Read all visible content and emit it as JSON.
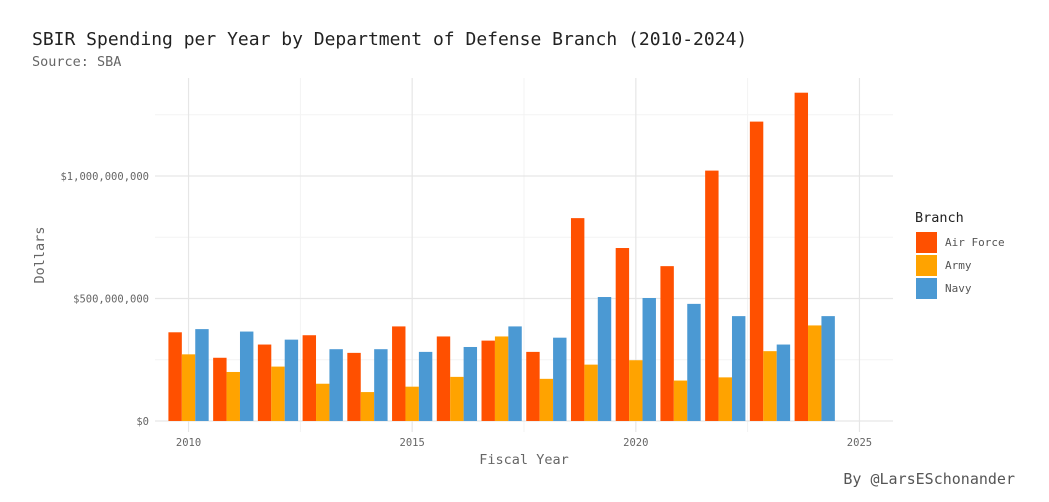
{
  "chart_data": {
    "type": "bar",
    "title": "SBIR Spending per Year by Department of Defense Branch (2010-2024)",
    "subtitle": "Source: SBA",
    "caption": "By @LarsESchonander",
    "xlabel": "Fiscal Year",
    "ylabel": "Dollars",
    "x": [
      2010,
      2011,
      2012,
      2013,
      2014,
      2015,
      2016,
      2017,
      2018,
      2019,
      2020,
      2021,
      2022,
      2023,
      2024
    ],
    "xlim": [
      2009.25,
      2025.75
    ],
    "ylim": [
      -45000000,
      1400000000
    ],
    "xticks": [
      2010,
      2015,
      2020,
      2025
    ],
    "xtick_labels": [
      "2010",
      "2015",
      "2020",
      "2025"
    ],
    "yticks": [
      0,
      500000000,
      1000000000
    ],
    "ytick_labels": [
      "$0",
      "$500,000,000",
      "$1,000,000,000"
    ],
    "grid": true,
    "legend": {
      "title": "Branch",
      "position": "right"
    },
    "series": [
      {
        "name": "Air Force",
        "color": "#FF5000",
        "values": [
          362000000,
          258000000,
          312000000,
          350000000,
          278000000,
          386000000,
          345000000,
          328000000,
          282000000,
          828000000,
          706000000,
          632000000,
          1022000000,
          1222000000,
          1340000000
        ]
      },
      {
        "name": "Army",
        "color": "#FFA300",
        "values": [
          272000000,
          200000000,
          222000000,
          152000000,
          118000000,
          140000000,
          180000000,
          345000000,
          172000000,
          230000000,
          248000000,
          165000000,
          178000000,
          285000000,
          390000000
        ]
      },
      {
        "name": "Navy",
        "color": "#4B99D3",
        "values": [
          375000000,
          365000000,
          332000000,
          293000000,
          293000000,
          282000000,
          302000000,
          386000000,
          340000000,
          506000000,
          502000000,
          478000000,
          428000000,
          312000000,
          428000000
        ]
      }
    ]
  }
}
